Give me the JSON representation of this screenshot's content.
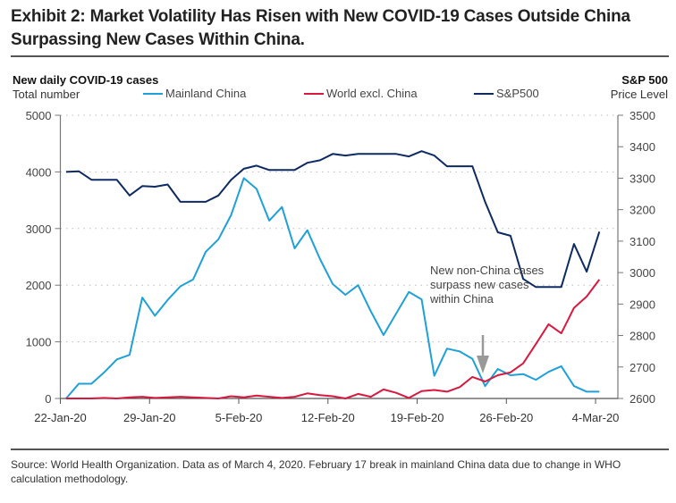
{
  "title": "Exhibit 2: Market Volatility Has Risen with New COVID-19 Cases Outside China Surpassing New Cases Within China.",
  "footer": "Source: World Health Organization. Data as of March 4, 2020. February 17 break in mainland China data due to change in WHO calculation methodology.",
  "chart_data": {
    "type": "line",
    "title": "Exhibit 2: Market Volatility Has Risen with New COVID-19 Cases Outside China Surpassing New Cases Within China.",
    "left_axis": {
      "title": "New daily COVID-19 cases",
      "subtitle": "Total number",
      "ylim": [
        0,
        5000
      ],
      "ticks": [
        "0",
        "1000",
        "2000",
        "3000",
        "4000",
        "5000"
      ]
    },
    "right_axis": {
      "title": "S&P 500",
      "subtitle": "Price Level",
      "ylim": [
        2600,
        3500
      ],
      "ticks": [
        "2600",
        "2700",
        "2800",
        "2900",
        "3000",
        "3100",
        "3200",
        "3300",
        "3400",
        "3500"
      ]
    },
    "x_ticks": [
      "22-Jan-20",
      "29-Jan-20",
      "5-Feb-20",
      "12-Feb-20",
      "19-Feb-20",
      "26-Feb-20",
      "4-Mar-20"
    ],
    "x_start": "22-Jan-20",
    "grid": "horizontal-dotted",
    "legend": [
      "Mainland China",
      "World excl. China",
      "S&P500"
    ],
    "legend_position": "top",
    "series": [
      {
        "name": "Mainland China",
        "axis": "left",
        "color": "#1fa0d8",
        "values": [
          0,
          260,
          260,
          460,
          690,
          770,
          1780,
          1460,
          1740,
          1980,
          2100,
          2590,
          2810,
          3240,
          3890,
          3700,
          3140,
          3380,
          2650,
          2970,
          2460,
          2020,
          1830,
          2000,
          1540,
          1120,
          1500,
          1880,
          1750,
          400,
          880,
          830,
          700,
          220,
          520,
          410,
          430,
          330,
          470,
          570,
          220,
          120,
          120
        ]
      },
      {
        "name": "World excl. China",
        "axis": "left",
        "color": "#d7193f",
        "values": [
          0,
          0,
          0,
          10,
          0,
          20,
          30,
          10,
          20,
          30,
          20,
          10,
          0,
          40,
          20,
          50,
          30,
          10,
          30,
          90,
          60,
          40,
          0,
          80,
          30,
          160,
          100,
          10,
          130,
          150,
          120,
          200,
          380,
          300,
          410,
          460,
          620,
          960,
          1310,
          1150,
          1600,
          1800,
          2100
        ]
      },
      {
        "name": "S&P500",
        "axis": "right",
        "color": "#0e2a63",
        "values": [
          3320,
          3322,
          3295,
          3295,
          3295,
          3245,
          3275,
          3273,
          3280,
          3225,
          3225,
          3225,
          3245,
          3295,
          3330,
          3340,
          3326,
          3326,
          3326,
          3349,
          3357,
          3377,
          3372,
          3377,
          3377,
          3377,
          3377,
          3369,
          3386,
          3372,
          3338,
          3338,
          3338,
          3225,
          3128,
          3117,
          2980,
          2954,
          2954,
          2954,
          3091,
          3003,
          3130
        ]
      }
    ],
    "annotation": "New non-China cases surpass new cases within China"
  }
}
